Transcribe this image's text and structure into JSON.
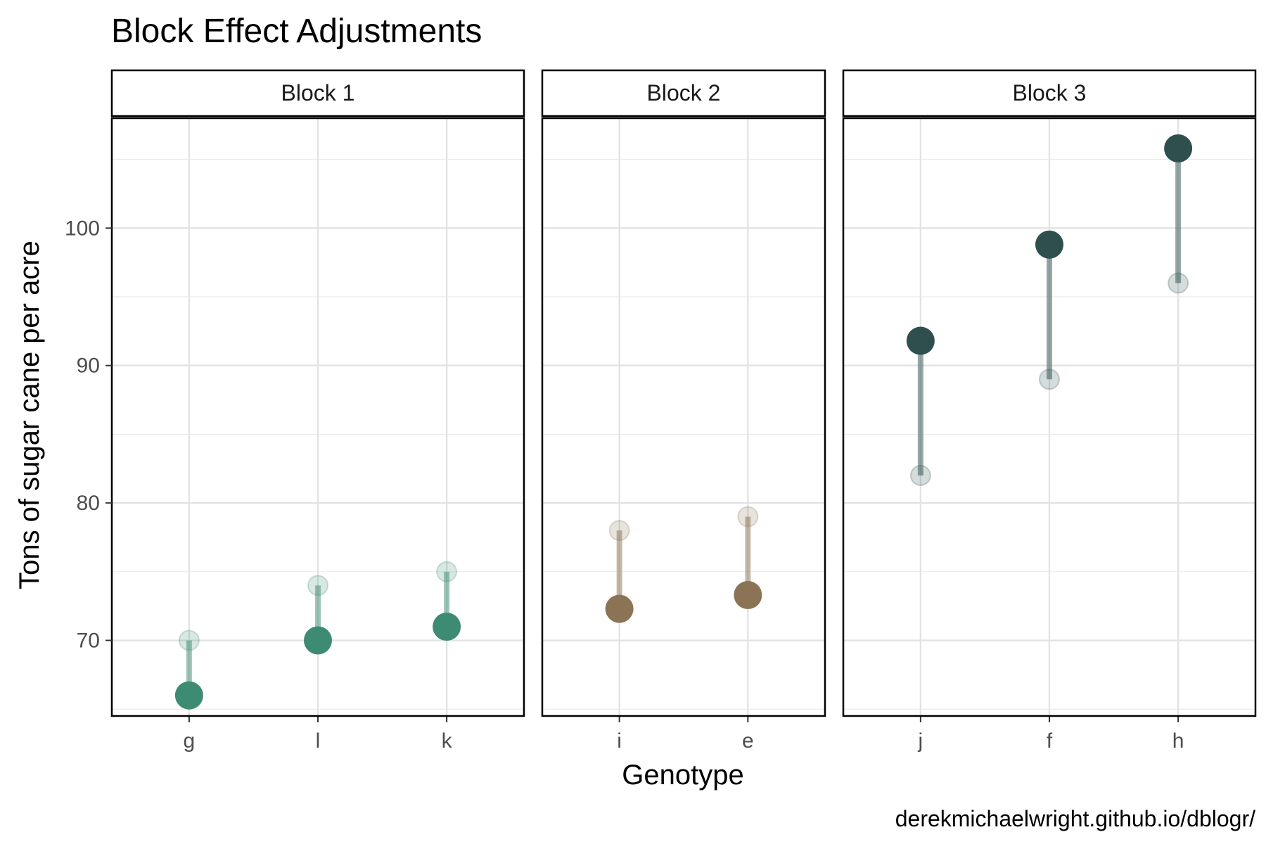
{
  "chart_data": {
    "type": "scatter",
    "title": "Block Effect Adjustments",
    "xlabel": "Genotype",
    "ylabel": "Tons of sugar cane per acre",
    "caption": "derekmichaelwright.github.io/dblogr/",
    "ylim": [
      64.5,
      108
    ],
    "yticks": [
      70,
      80,
      90,
      100
    ],
    "yticks_labels": [
      "70",
      "80",
      "90",
      "100"
    ],
    "grid": true,
    "panels": [
      {
        "name": "Block 1",
        "color": "#3d8b72",
        "categories": [
          "g",
          "l",
          "k"
        ],
        "original": [
          70,
          74,
          75
        ],
        "adjusted": [
          66,
          70,
          71
        ]
      },
      {
        "name": "Block 2",
        "color": "#8b7355",
        "categories": [
          "i",
          "e"
        ],
        "original": [
          78,
          79
        ],
        "adjusted": [
          72.3,
          73.3
        ]
      },
      {
        "name": "Block 3",
        "color": "#2f4f4f",
        "categories": [
          "j",
          "f",
          "h"
        ],
        "original": [
          82,
          89,
          96
        ],
        "adjusted": [
          91.8,
          98.8,
          105.8
        ]
      }
    ]
  }
}
